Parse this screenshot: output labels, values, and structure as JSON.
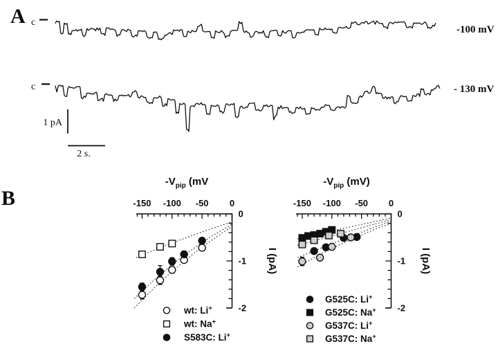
{
  "figure": {
    "background": "#ffffff",
    "ink": "#111111",
    "stipple_fill": "#dcdcdc",
    "stipple_dot": "#909090"
  },
  "panel_a": {
    "label": "A",
    "traces": [
      {
        "closed_label": "c",
        "voltage_label": "-100 mV",
        "seed": 7,
        "unit": "pA",
        "segments": [
          [
            0.015,
            0
          ],
          [
            0.01,
            -0.5
          ],
          [
            0.012,
            -0.08
          ],
          [
            0.01,
            -0.55
          ],
          [
            0.03,
            -0.38
          ],
          [
            0.012,
            -0.62
          ],
          [
            0.04,
            -0.36
          ],
          [
            0.014,
            -0.58
          ],
          [
            0.03,
            -0.36
          ],
          [
            0.012,
            -0.6
          ],
          [
            0.03,
            -0.42
          ],
          [
            0.018,
            -0.68
          ],
          [
            0.025,
            -0.46
          ],
          [
            0.018,
            -0.75
          ],
          [
            0.014,
            -0.52
          ],
          [
            0.018,
            -0.8
          ],
          [
            0.024,
            -0.56
          ],
          [
            0.028,
            -0.4
          ],
          [
            0.012,
            -0.66
          ],
          [
            0.028,
            -0.44
          ],
          [
            0.014,
            -0.2
          ],
          [
            0.024,
            -0.46
          ],
          [
            0.012,
            -0.7
          ],
          [
            0.028,
            -0.46
          ],
          [
            0.014,
            -0.62
          ],
          [
            0.024,
            -0.4
          ],
          [
            0.012,
            -0.05
          ],
          [
            0.02,
            -0.42
          ],
          [
            0.012,
            -0.64
          ],
          [
            0.028,
            -0.44
          ],
          [
            0.014,
            -0.6
          ],
          [
            0.024,
            -0.4
          ],
          [
            0.012,
            -0.58
          ],
          [
            0.028,
            -0.42
          ],
          [
            0.012,
            -0.68
          ],
          [
            0.024,
            -0.48
          ],
          [
            0.028,
            -0.36
          ],
          [
            0.012,
            -0.56
          ],
          [
            0.038,
            -0.34
          ],
          [
            0.014,
            -0.52
          ],
          [
            0.038,
            -0.3
          ],
          [
            0.05,
            -0.12
          ],
          [
            0.04,
            -0.1
          ],
          [
            0.014,
            -0.32
          ],
          [
            0.05,
            -0.1
          ],
          [
            0.02,
            -0.3
          ],
          [
            0.04,
            -0.12
          ],
          [
            0.014,
            -0.32
          ],
          [
            0.012,
            -0.16
          ]
        ]
      },
      {
        "closed_label": "c",
        "voltage_label": "- 130 mV",
        "seed": 13,
        "unit": "pA",
        "segments": [
          [
            0.02,
            0
          ],
          [
            0.008,
            -0.4
          ],
          [
            0.03,
            -0.05
          ],
          [
            0.012,
            -0.5
          ],
          [
            0.025,
            -0.35
          ],
          [
            0.015,
            -0.6
          ],
          [
            0.02,
            -0.4
          ],
          [
            0.012,
            -0.65
          ],
          [
            0.03,
            -0.45
          ],
          [
            0.012,
            -0.3
          ],
          [
            0.02,
            -0.5
          ],
          [
            0.015,
            -0.75
          ],
          [
            0.02,
            -0.55
          ],
          [
            0.012,
            -0.85
          ],
          [
            0.018,
            -0.65
          ],
          [
            0.008,
            -1.15
          ],
          [
            0.015,
            -0.8
          ],
          [
            0.008,
            -1.9
          ],
          [
            0.012,
            -0.9
          ],
          [
            0.025,
            -0.8
          ],
          [
            0.01,
            -1.2
          ],
          [
            0.02,
            -0.85
          ],
          [
            0.012,
            -1.1
          ],
          [
            0.022,
            -0.8
          ],
          [
            0.01,
            -1.3
          ],
          [
            0.02,
            -0.9
          ],
          [
            0.015,
            -0.7
          ],
          [
            0.018,
            -1.0
          ],
          [
            0.022,
            -0.82
          ],
          [
            0.01,
            -1.25
          ],
          [
            0.025,
            -0.88
          ],
          [
            0.015,
            -1.1
          ],
          [
            0.022,
            -0.92
          ],
          [
            0.012,
            -1.15
          ],
          [
            0.025,
            -0.95
          ],
          [
            0.018,
            -0.85
          ],
          [
            0.012,
            -1.05
          ],
          [
            0.025,
            -0.92
          ],
          [
            0.008,
            -0.45
          ],
          [
            0.018,
            -0.75
          ],
          [
            0.012,
            -0.5
          ],
          [
            0.018,
            -0.3
          ],
          [
            0.008,
            -0.1
          ],
          [
            0.015,
            -0.35
          ],
          [
            0.025,
            -0.55
          ],
          [
            0.012,
            -0.75
          ],
          [
            0.018,
            -0.5
          ],
          [
            0.012,
            -0.68
          ],
          [
            0.018,
            -0.45
          ],
          [
            0.008,
            -0.2
          ],
          [
            0.015,
            -0.4
          ],
          [
            0.012,
            -0.18
          ],
          [
            0.01,
            -0.08
          ]
        ]
      }
    ],
    "scale": {
      "current_label": "1 pA",
      "time_label": "2 s."
    }
  },
  "panel_b": {
    "label": "B"
  },
  "chart_data": [
    {
      "type": "scatter",
      "xlabel": {
        "prefix": "-V",
        "sub": "pip",
        "suffix": " (mV"
      },
      "ylabel": "I (pA)",
      "xlim": [
        -160,
        0
      ],
      "ylim": [
        -2,
        0
      ],
      "x_ticks": [
        -150,
        -100,
        -50,
        0
      ],
      "y_ticks": [
        0,
        -1,
        -2
      ],
      "x_minor_step": 10,
      "y_minor_step": 0.2,
      "grid": false,
      "legend_position": "below-right",
      "series": [
        {
          "name": "wt: Li",
          "sup": "+",
          "marker": "circle-open",
          "points": [
            [
              -150,
              -1.72,
              0.09
            ],
            [
              -120,
              -1.41,
              0.09
            ],
            [
              -100,
              -1.19,
              0.07
            ],
            [
              -80,
              -0.98,
              0.05
            ],
            [
              -50,
              -0.72,
              0
            ]
          ],
          "fit": [
            -163,
            -2.0,
            -85,
            -0.95,
            0,
            -0.27
          ]
        },
        {
          "name": "wt: Na",
          "sup": "+",
          "marker": "square-open",
          "points": [
            [
              -150,
              -0.86,
              0.06
            ],
            [
              -120,
              -0.7,
              0
            ],
            [
              -100,
              -0.63,
              0
            ]
          ],
          "fit": [
            -160,
            -0.93,
            -85,
            -0.52,
            0,
            -0.17
          ]
        },
        {
          "name": "S583C: Li",
          "sup": "+",
          "marker": "circle-filled",
          "points": [
            [
              -150,
              -1.55,
              0.08
            ],
            [
              -120,
              -1.23,
              0.13
            ],
            [
              -100,
              -1.01,
              0.08
            ],
            [
              -80,
              -0.86,
              0.07
            ],
            [
              -50,
              -0.57,
              0
            ]
          ],
          "fit": [
            -163,
            -1.8,
            -85,
            -0.82,
            0,
            -0.22
          ]
        }
      ]
    },
    {
      "type": "scatter",
      "xlabel": {
        "prefix": "-V",
        "sub": "pip",
        "suffix": " (mV)"
      },
      "ylabel": "I (pA)",
      "xlim": [
        -160,
        0
      ],
      "ylim": [
        -2,
        0
      ],
      "x_ticks": [
        -150,
        -100,
        -50,
        0
      ],
      "y_ticks": [
        0,
        -1,
        -2
      ],
      "x_minor_step": 10,
      "y_minor_step": 0.2,
      "grid": false,
      "legend_position": "below-right",
      "series": [
        {
          "name": "G525C: Li",
          "sup": "+",
          "marker": "circle-filled",
          "points": [
            [
              -130,
              -0.79,
              0
            ],
            [
              -110,
              -0.71,
              0.06
            ],
            [
              -80,
              -0.51,
              0
            ],
            [
              -58,
              -0.49,
              0
            ]
          ],
          "fit": [
            -158,
            -0.93,
            -80,
            -0.53,
            0,
            -0.15
          ]
        },
        {
          "name": "G525C: Na",
          "sup": "+",
          "marker": "square-filled",
          "points": [
            [
              -150,
              -0.51,
              0
            ],
            [
              -140,
              -0.47,
              0
            ],
            [
              -130,
              -0.45,
              0
            ],
            [
              -120,
              -0.42,
              0
            ],
            [
              -110,
              -0.38,
              0
            ],
            [
              -100,
              -0.34,
              0
            ]
          ],
          "fit": [
            -158,
            -0.53,
            -80,
            -0.3,
            0,
            -0.09
          ]
        },
        {
          "name": "G537C: Li",
          "sup": "+",
          "marker": "circle-gray",
          "points": [
            [
              -150,
              -1.01,
              0.09
            ],
            [
              -120,
              -0.93,
              0
            ],
            [
              -100,
              -0.7,
              0.07
            ],
            [
              -68,
              -0.5,
              0
            ]
          ],
          "fit": [
            -158,
            -1.13,
            -80,
            -0.56,
            0,
            -0.2
          ]
        },
        {
          "name": "G537C: Na",
          "sup": "+",
          "marker": "square-gray",
          "points": [
            [
              -150,
              -0.65,
              0.05
            ],
            [
              -130,
              -0.56,
              0
            ],
            [
              -105,
              -0.46,
              0
            ],
            [
              -85,
              -0.42,
              0
            ]
          ],
          "fit": [
            -158,
            -0.67,
            -80,
            -0.4,
            0,
            -0.12
          ]
        }
      ]
    }
  ]
}
